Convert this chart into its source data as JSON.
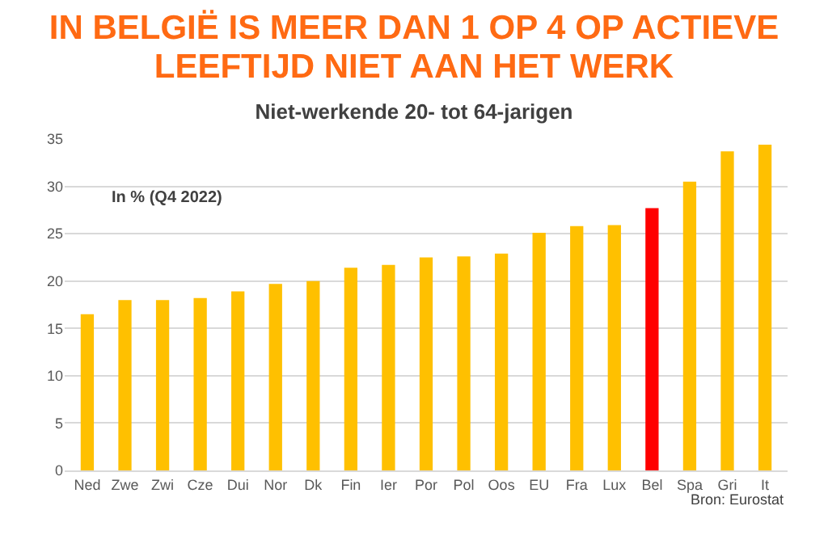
{
  "chart_data": {
    "type": "bar",
    "title": "IN BELGIË IS MEER DAN 1 OP 4 OP ACTIEVE LEEFTIJD NIET AAN HET WERK",
    "subtitle": "Niet-werkende 20- tot 64-jarigen",
    "categories": [
      "Ned",
      "Zwe",
      "Zwi",
      "Cze",
      "Dui",
      "Nor",
      "Dk",
      "Fin",
      "Ier",
      "Por",
      "Pol",
      "Oos",
      "EU",
      "Fra",
      "Lux",
      "Bel",
      "Spa",
      "Gri",
      "It"
    ],
    "values": [
      16.5,
      18.0,
      18.0,
      18.2,
      18.9,
      19.7,
      20.0,
      21.4,
      21.7,
      22.5,
      22.6,
      22.9,
      25.1,
      25.8,
      25.9,
      27.7,
      30.5,
      33.7,
      34.4
    ],
    "colors": [
      "#ffc000",
      "#ffc000",
      "#ffc000",
      "#ffc000",
      "#ffc000",
      "#ffc000",
      "#ffc000",
      "#ffc000",
      "#ffc000",
      "#ffc000",
      "#ffc000",
      "#ffc000",
      "#ffc000",
      "#ffc000",
      "#ffc000",
      "#ff0000",
      "#ffc000",
      "#ffc000",
      "#ffc000"
    ],
    "ylim": [
      0,
      35
    ],
    "yticks": [
      0,
      5,
      10,
      15,
      20,
      25,
      30,
      35
    ],
    "grid": "y",
    "annotations": [
      "In % (Q4 2022)",
      "Bron: Eurostat"
    ]
  }
}
